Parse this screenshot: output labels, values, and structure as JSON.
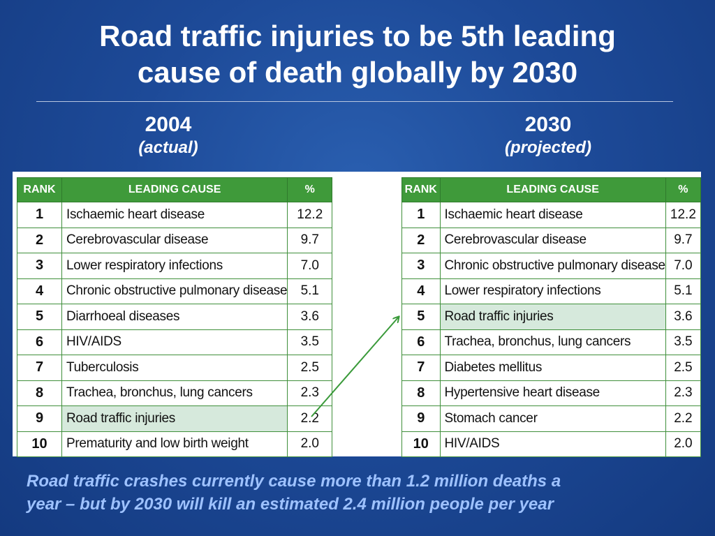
{
  "slide": {
    "title_line1": "Road traffic injuries to be 5th leading",
    "title_line2": "cause of death globally by 2030",
    "footnote_line1": "Road traffic crashes currently cause more than 1.2 million deaths a",
    "footnote_line2": "year – but by 2030 will kill an estimated 2.4 million people per year"
  },
  "colors": {
    "header_green": "#3f9a3a",
    "highlight_row": "#d6e9dc",
    "arrow_green": "#3a9a3a",
    "footnote_blue": "#9ec2ff"
  },
  "left": {
    "year": "2004",
    "subtitle": "(actual)",
    "headers": {
      "rank": "RANK",
      "cause": "LEADING CAUSE",
      "pct": "%"
    },
    "rows": [
      {
        "rank": "1",
        "cause": "Ischaemic heart disease",
        "pct": "12.2",
        "highlight": false
      },
      {
        "rank": "2",
        "cause": "Cerebrovascular disease",
        "pct": "9.7",
        "highlight": false
      },
      {
        "rank": "3",
        "cause": "Lower respiratory infections",
        "pct": "7.0",
        "highlight": false
      },
      {
        "rank": "4",
        "cause": "Chronic obstructive pulmonary disease",
        "pct": "5.1",
        "highlight": false
      },
      {
        "rank": "5",
        "cause": "Diarrhoeal diseases",
        "pct": "3.6",
        "highlight": false
      },
      {
        "rank": "6",
        "cause": "HIV/AIDS",
        "pct": "3.5",
        "highlight": false
      },
      {
        "rank": "7",
        "cause": "Tuberculosis",
        "pct": "2.5",
        "highlight": false
      },
      {
        "rank": "8",
        "cause": "Trachea, bronchus, lung cancers",
        "pct": "2.3",
        "highlight": false
      },
      {
        "rank": "9",
        "cause": "Road traffic injuries",
        "pct": "2.2",
        "highlight": true
      },
      {
        "rank": "10",
        "cause": "Prematurity and low birth weight",
        "pct": "2.0",
        "highlight": false
      }
    ]
  },
  "right": {
    "year": "2030",
    "subtitle": "(projected)",
    "headers": {
      "rank": "RANK",
      "cause": "LEADING CAUSE",
      "pct": "%"
    },
    "rows": [
      {
        "rank": "1",
        "cause": "Ischaemic heart disease",
        "pct": "12.2",
        "highlight": false
      },
      {
        "rank": "2",
        "cause": "Cerebrovascular disease",
        "pct": "9.7",
        "highlight": false
      },
      {
        "rank": "3",
        "cause": "Chronic obstructive pulmonary disease",
        "pct": "7.0",
        "highlight": false
      },
      {
        "rank": "4",
        "cause": "Lower respiratory infections",
        "pct": "5.1",
        "highlight": false
      },
      {
        "rank": "5",
        "cause": "Road traffic injuries",
        "pct": "3.6",
        "highlight": true
      },
      {
        "rank": "6",
        "cause": "Trachea, bronchus, lung cancers",
        "pct": "3.5",
        "highlight": false
      },
      {
        "rank": "7",
        "cause": "Diabetes mellitus",
        "pct": "2.5",
        "highlight": false
      },
      {
        "rank": "8",
        "cause": "Hypertensive heart disease",
        "pct": "2.3",
        "highlight": false
      },
      {
        "rank": "9",
        "cause": "Stomach cancer",
        "pct": "2.2",
        "highlight": false
      },
      {
        "rank": "10",
        "cause": "HIV/AIDS",
        "pct": "2.0",
        "highlight": false
      }
    ]
  }
}
